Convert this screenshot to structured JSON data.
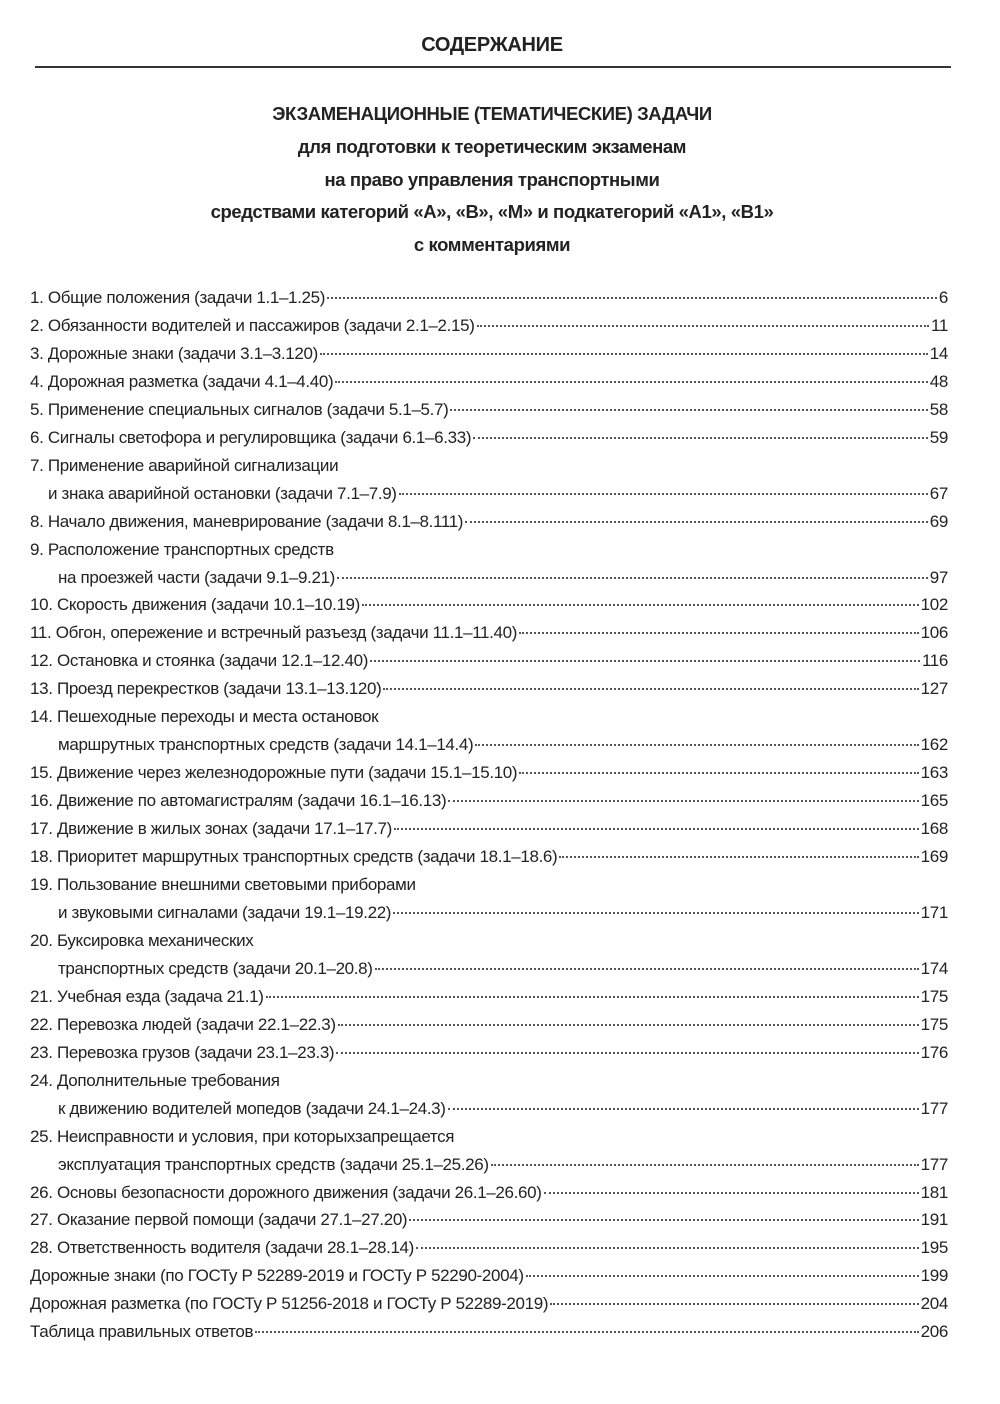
{
  "heading": "СОДЕРЖАНИЕ",
  "title_lines": [
    "ЭКЗАМЕНАЦИОННЫЕ (ТЕМАТИЧЕСКИЕ) ЗАДАЧИ",
    "для подготовки к теоретическим экзаменам",
    "на право управления транспортными",
    "средствами категорий «A», «B», «M» и подкатегорий «A1», «B1»",
    "с комментариями"
  ],
  "toc": [
    {
      "lines": [
        "1. Общие положения (задачи 1.1–1.25)"
      ],
      "page": "6"
    },
    {
      "lines": [
        "2. Обязанности водителей и пассажиров (задачи 2.1–2.15)"
      ],
      "page": "11"
    },
    {
      "lines": [
        "3. Дорожные знаки (задачи 3.1–3.120)"
      ],
      "page": "14"
    },
    {
      "lines": [
        "4. Дорожная разметка (задачи 4.1–4.40)"
      ],
      "page": "48"
    },
    {
      "lines": [
        "5. Применение специальных сигналов (задачи 5.1–5.7)"
      ],
      "page": "58"
    },
    {
      "lines": [
        "6. Сигналы светофора и регулировщика (задачи 6.1–6.33)"
      ],
      "page": "59"
    },
    {
      "lines": [
        "7. Применение аварийной сигнализации",
        "и знака аварийной остановки (задачи 7.1–7.9)"
      ],
      "page": "67"
    },
    {
      "lines": [
        "8. Начало движения, маневрирование (задачи 8.1–8.111)"
      ],
      "page": "69"
    },
    {
      "lines": [
        "9. Расположение транспортных средств",
        "на проезжей части (задачи 9.1–9.21)"
      ],
      "page": "97"
    },
    {
      "lines": [
        "10. Скорость движения (задачи 10.1–10.19)"
      ],
      "page": "102"
    },
    {
      "lines": [
        "11. Обгон, опережение и встречный разъезд (задачи 11.1–11.40)"
      ],
      "page": "106"
    },
    {
      "lines": [
        "12. Остановка и стоянка (задачи 12.1–12.40)"
      ],
      "page": "116"
    },
    {
      "lines": [
        "13. Проезд перекрестков (задачи 13.1–13.120)"
      ],
      "page": "127"
    },
    {
      "lines": [
        "14. Пешеходные переходы и места остановок",
        "маршрутных транспортных средств (задачи 14.1–14.4)"
      ],
      "page": "162"
    },
    {
      "lines": [
        "15. Движение через железнодорожные пути (задачи 15.1–15.10)"
      ],
      "page": "163"
    },
    {
      "lines": [
        "16. Движение по автомагистралям (задачи 16.1–16.13)"
      ],
      "page": "165"
    },
    {
      "lines": [
        "17. Движение в жилых зонах (задачи 17.1–17.7)"
      ],
      "page": "168"
    },
    {
      "lines": [
        "18. Приоритет маршрутных транспортных средств (задачи 18.1–18.6)"
      ],
      "page": "169"
    },
    {
      "lines": [
        "19. Пользование внешними световыми приборами",
        "и звуковыми сигналами (задачи 19.1–19.22)"
      ],
      "page": "171"
    },
    {
      "lines": [
        "20. Буксировка механических",
        "транспортных средств (задачи 20.1–20.8)"
      ],
      "page": "174"
    },
    {
      "lines": [
        "21. Учебная езда (задача 21.1)"
      ],
      "page": "175"
    },
    {
      "lines": [
        "22. Перевозка людей (задачи 22.1–22.3)"
      ],
      "page": "175"
    },
    {
      "lines": [
        "23. Перевозка грузов (задачи 23.1–23.3)"
      ],
      "page": "176"
    },
    {
      "lines": [
        "24. Дополнительные требования",
        "к движению водителей мопедов (задачи 24.1–24.3)"
      ],
      "page": "177"
    },
    {
      "lines": [
        "25. Неисправности и условия, при которыхзапрещается",
        "эксплуатация транспортных средств (задачи 25.1–25.26)"
      ],
      "page": "177"
    },
    {
      "lines": [
        "26. Основы безопасности дорожного движения (задачи 26.1–26.60)"
      ],
      "page": "181"
    },
    {
      "lines": [
        "27. Оказание первой помощи (задачи 27.1–27.20)"
      ],
      "page": "191"
    },
    {
      "lines": [
        "28. Ответственность водителя (задачи 28.1–28.14)"
      ],
      "page": "195"
    },
    {
      "lines": [
        "Дорожные знаки (по ГОСТу Р 52289-2019 и ГОСТу Р 52290-2004)"
      ],
      "page": "199"
    },
    {
      "lines": [
        "Дорожная разметка (по ГОСТу Р 51256-2018 и ГОСТу Р 52289-2019)"
      ],
      "page": "204"
    },
    {
      "lines": [
        "Таблица правильных ответов"
      ],
      "page": "206"
    }
  ]
}
